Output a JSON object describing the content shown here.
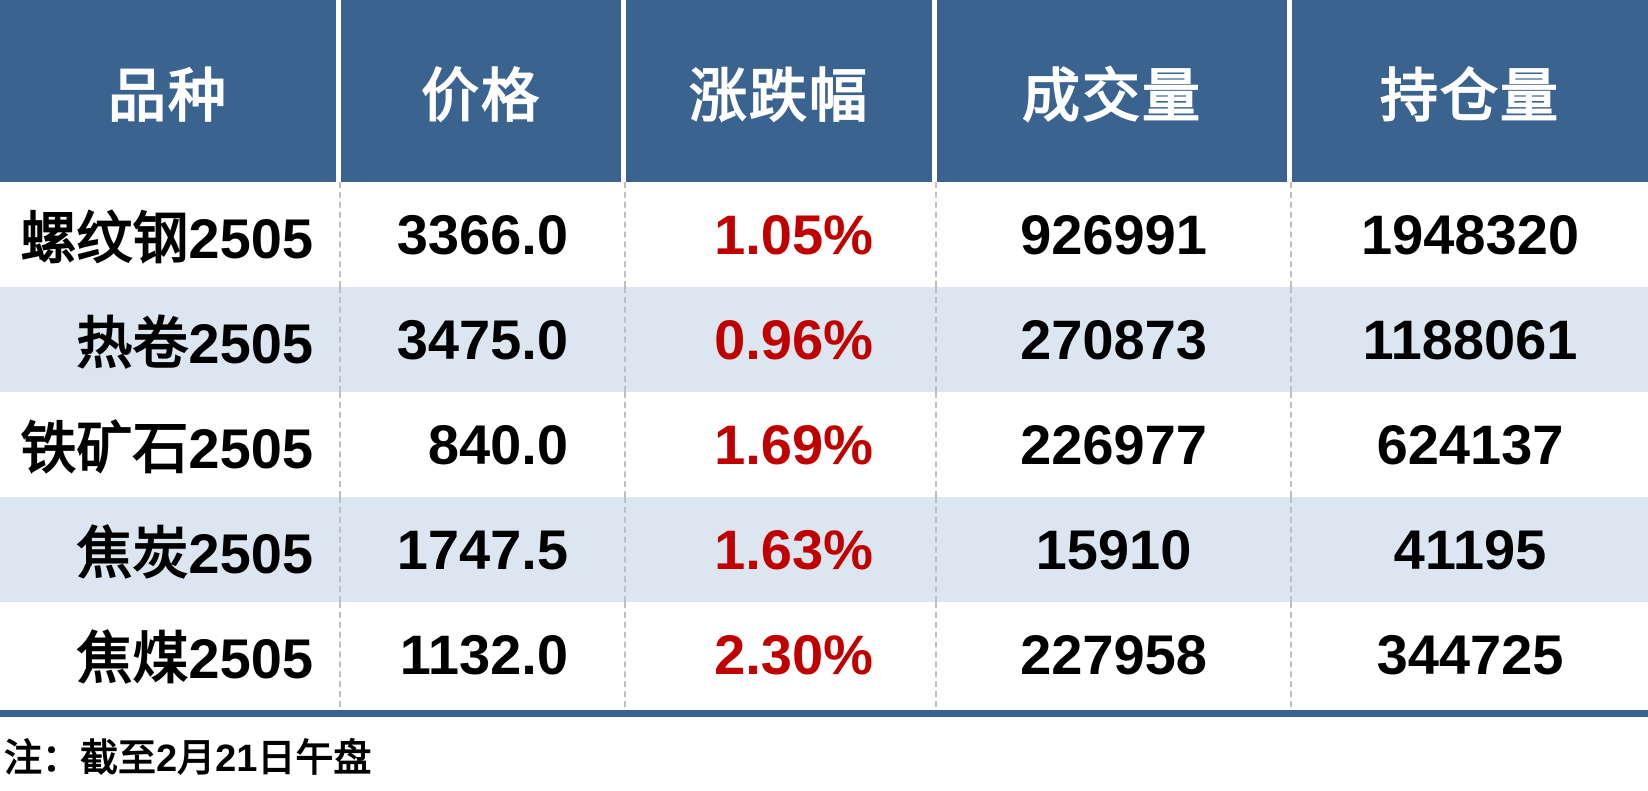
{
  "table": {
    "columns": [
      {
        "label": "品种"
      },
      {
        "label": "价格"
      },
      {
        "label": "涨跌幅"
      },
      {
        "label": "成交量"
      },
      {
        "label": "持仓量"
      }
    ],
    "rows": [
      {
        "variety": "螺纹钢2505",
        "price": "3366.0",
        "change": "1.05%",
        "volume": "926991",
        "open_interest": "1948320"
      },
      {
        "variety": "热卷2505",
        "price": "3475.0",
        "change": "0.96%",
        "volume": "270873",
        "open_interest": "1188061"
      },
      {
        "variety": "铁矿石2505",
        "price": "840.0",
        "change": "1.69%",
        "volume": "226977",
        "open_interest": "624137"
      },
      {
        "variety": "焦炭2505",
        "price": "1747.5",
        "change": "1.63%",
        "volume": "15910",
        "open_interest": "41195"
      },
      {
        "variety": "焦煤2505",
        "price": "1132.0",
        "change": "2.30%",
        "volume": "227958",
        "open_interest": "344725"
      }
    ]
  },
  "note": "注：截至2月21日午盘",
  "colors": {
    "header_bg": "#3A648F",
    "row_alt_bg": "#DCE6F1",
    "change_red": "#C00000",
    "divider_dash": "#BFBFBF",
    "bottom_rule": "#38628F",
    "body_text": "#000000",
    "header_text": "#FFFFFF"
  }
}
